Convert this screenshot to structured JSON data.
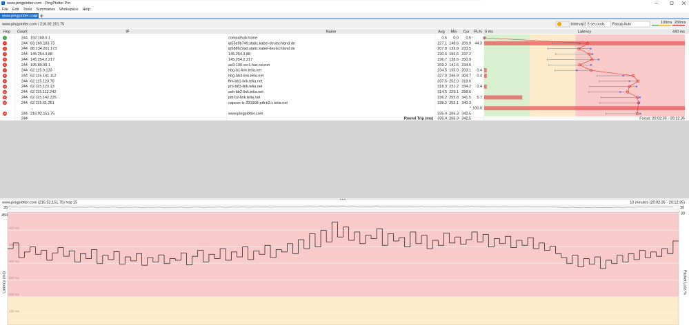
{
  "window": {
    "title": "www.pingplotter.com - PingPlotter Pro",
    "menu": [
      "File",
      "Edit",
      "Tools",
      "Summaries",
      "Workspace",
      "Help"
    ]
  },
  "tabs": [
    "www.pingplotter.com"
  ],
  "toolbar": {
    "target": "www.pingplotter.com / 216.92.151.75",
    "interval_label": "Interval",
    "interval": "2.5 seconds",
    "focus_label": "Focus",
    "focus": "Auto",
    "thresholds": [
      {
        "value": 100,
        "label": "100ms"
      },
      {
        "value": 200,
        "label": "200ms"
      }
    ]
  },
  "table": {
    "columns": [
      "Hop",
      "Count",
      "IP",
      "Name",
      "Avg",
      "Min",
      "Cur",
      "PL%"
    ],
    "latency": {
      "min_label": "0 ms",
      "title": "Latency",
      "max_label": "440 ms",
      "xlim": [
        0,
        440
      ]
    },
    "rows": [
      {
        "hop": "1",
        "count": "244",
        "ip": "192.168.0.1",
        "name": "compalhub.home",
        "avg": "0.6",
        "min": "0.0",
        "cur": "0.5"
      },
      {
        "hop": "2",
        "count": "244",
        "ip": "83.169.183.73",
        "name": "ip53a9b749.static.kabel-deutschland.de",
        "avg": "227.1",
        "min": "148.6",
        "cur": "209.9",
        "pl": "44.3"
      },
      {
        "hop": "3",
        "count": "244",
        "ip": "88.134.201.173",
        "name": "ip5886c9ad.static.kabel-deutschland.de",
        "avg": "207.8",
        "min": "139.8",
        "cur": "233.5"
      },
      {
        "hop": "4",
        "count": "244",
        "ip": "145.254.3.88",
        "name": "145.254.3.88",
        "avg": "230.6",
        "min": "156.6",
        "cur": "237.2"
      },
      {
        "hop": "5",
        "count": "244",
        "ip": "145.254.2.217",
        "name": "145.254.2.217",
        "avg": "236.7",
        "min": "138.6",
        "cur": "250.9"
      },
      {
        "hop": "6",
        "count": "244",
        "ip": "195.89.99.1",
        "name": "ae9-100-xcr1.hac.cw.net",
        "avg": "209.2",
        "min": "141.6",
        "cur": "234.5"
      },
      {
        "hop": "7",
        "count": "244",
        "ip": "62.115.9.133",
        "name": "hbg-b1-link.telia.net",
        "avg": "234.5",
        "min": "155.0",
        "cur": "203.1",
        "pl": "0.4"
      },
      {
        "hop": "8",
        "count": "244",
        "ip": "62.115.141.112",
        "name": "hbg-bb3-link.telia.net",
        "avg": "327.0",
        "min": "246.9",
        "cur": "304.7",
        "pl": "0.4"
      },
      {
        "hop": "9",
        "count": "244",
        "ip": "62.115.123.76",
        "name": "ffm-bb1-link.telia.net",
        "avg": "337.5",
        "min": "252.0",
        "cur": "318.6"
      },
      {
        "hop": "10",
        "count": "244",
        "ip": "62.115.123.13",
        "name": "prs-bb3-link.telia.net",
        "avg": "318.3",
        "min": "231.2",
        "cur": "334.2",
        "pl": "0.4"
      },
      {
        "hop": "11",
        "count": "244",
        "ip": "62.115.112.242",
        "name": "ash-bb2-link.telia.net",
        "avg": "314.5",
        "min": "229.1",
        "cur": "298.6"
      },
      {
        "hop": "12",
        "count": "244",
        "ip": "62.115.142.225",
        "name": "pitt-b2-link.telia.net",
        "avg": "336.2",
        "min": "255.8",
        "cur": "341.5",
        "pl": "5.7"
      },
      {
        "hop": "13",
        "count": "244",
        "ip": "62.115.61.251",
        "name": "capcon-ic-331908-pitt-b2.c.telia.net",
        "avg": "338.2",
        "min": "253.1",
        "cur": "340.3"
      },
      {
        "ip": "...",
        "cur": "*",
        "pl": "100.0"
      },
      {
        "hop": "15",
        "count": "244",
        "ip": "216.92.151.75",
        "name": "www.pingplotter.com",
        "avg": "335.4",
        "min": "266.3",
        "cur": "342.5"
      }
    ],
    "summary": {
      "count": "244",
      "label": "Round Trip (ms)",
      "avg": "335.4",
      "min": "266.3",
      "cur": "342.5",
      "focus": "Focus: 20:02:35 - 20:12:35"
    }
  },
  "graph": {
    "header_left": "www.pingplotter.com (216.92.151.75) hop 15",
    "header_right": "10 minutes (20:02:35 - 20:12:35)",
    "overview_left": "35",
    "overview_right": "30",
    "y_label": "Latency (ms)",
    "y2_label": "Packet Loss %",
    "ylim": [
      115,
      455
    ],
    "yticks": [
      450,
      {
        "value": 400,
        "label": "400 ms"
      },
      {
        "value": 350,
        "label": "350 ms"
      },
      {
        "value": 300,
        "label": "300 ms"
      },
      {
        "value": 250,
        "label": "250 ms"
      },
      {
        "value": 200,
        "label": "200 ms"
      },
      {
        "value": 150,
        "label": "150 ms"
      }
    ],
    "y2lim": [
      0,
      30
    ],
    "y2ticks": [
      30
    ],
    "color": "#111111",
    "values": [
      345,
      362,
      318,
      335,
      350,
      328,
      340,
      310,
      332,
      348,
      322,
      338,
      305,
      330,
      315,
      342,
      300,
      325,
      312,
      336,
      298,
      320,
      308,
      330,
      295,
      318,
      305,
      326,
      300,
      315,
      310,
      332,
      296,
      322,
      340,
      305,
      328,
      315,
      345,
      310,
      335,
      320,
      350,
      312,
      338,
      328,
      355,
      318,
      342,
      335,
      360,
      330,
      372,
      345,
      390,
      350,
      400,
      365,
      425,
      380,
      410,
      370,
      395,
      360,
      385,
      375,
      405,
      355,
      390,
      368,
      378,
      350,
      395,
      360,
      385,
      345,
      370,
      355,
      392,
      362,
      380,
      358,
      372,
      395,
      365,
      388,
      350,
      375,
      360,
      382,
      348,
      370,
      355,
      378,
      345,
      362,
      340,
      352,
      330,
      318,
      300,
      325,
      290,
      315,
      298,
      320,
      285,
      310,
      300,
      325,
      305,
      330,
      312,
      340,
      318,
      335,
      322,
      345,
      330,
      368
    ]
  }
}
